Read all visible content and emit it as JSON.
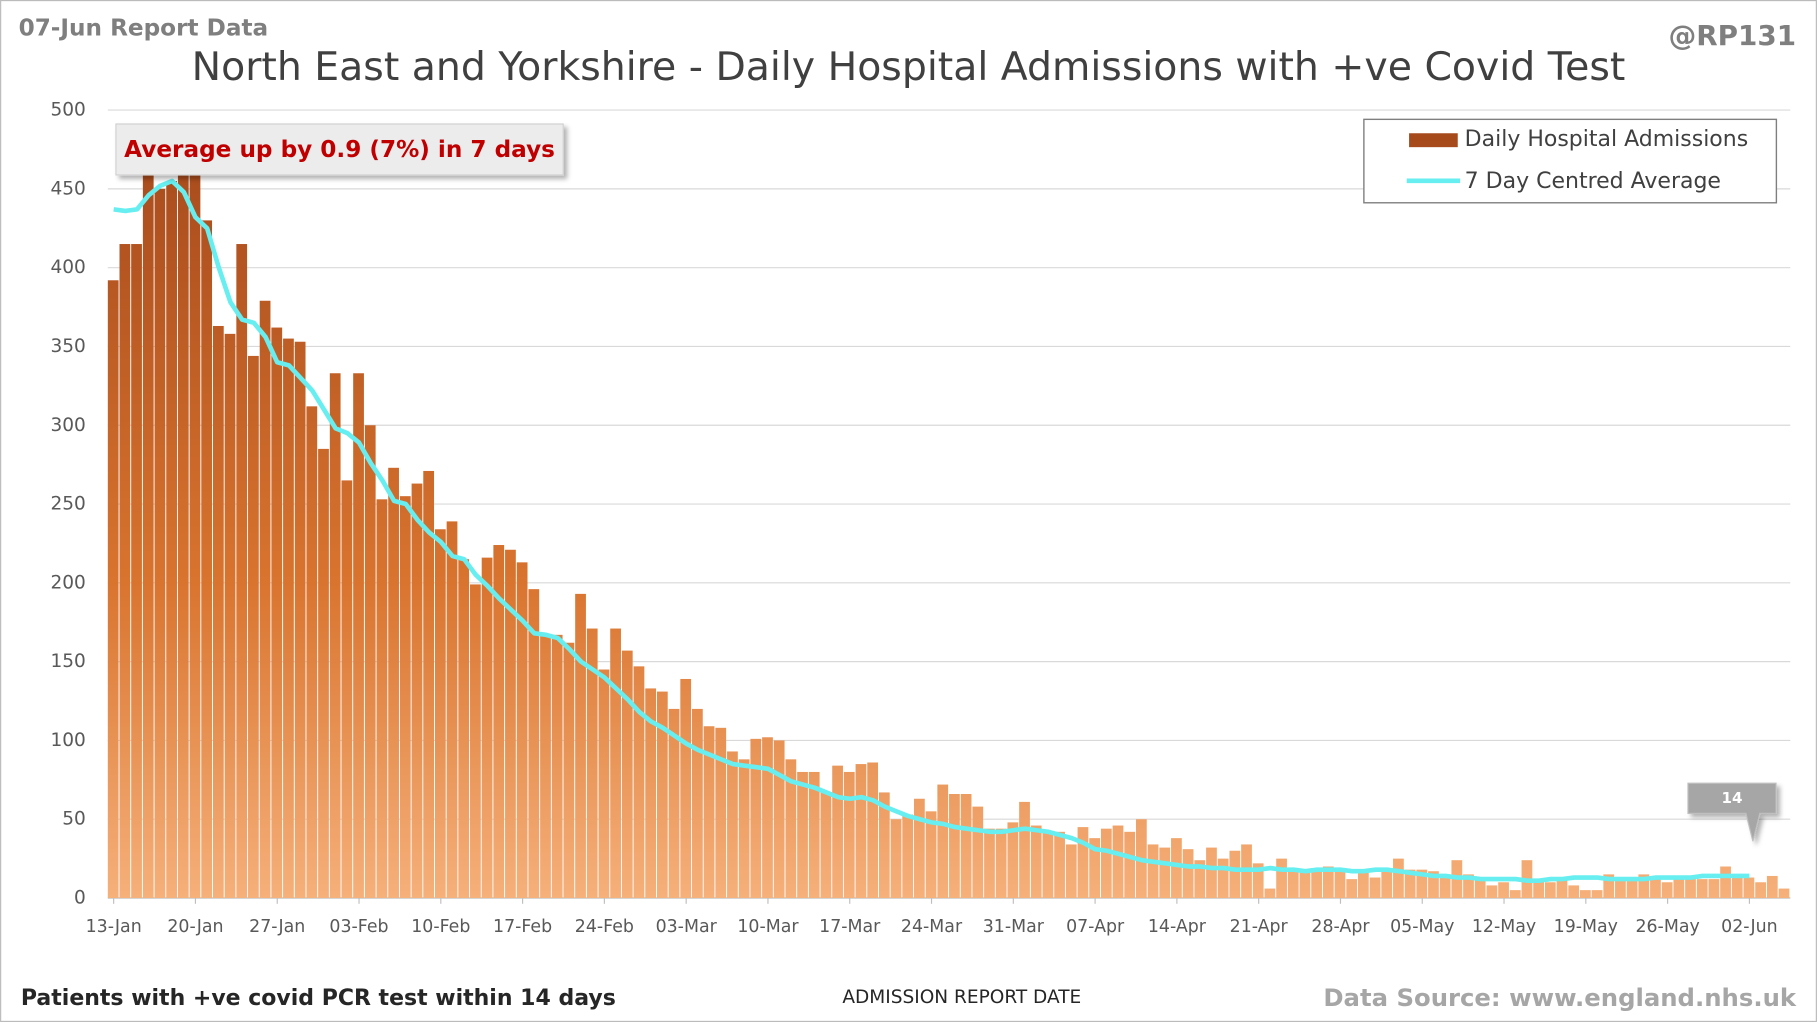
{
  "chart_data": {
    "type": "bar",
    "report_label": "07-Jun Report Data",
    "handle": "@RP131",
    "title": "North East and Yorkshire - Daily Hospital Admissions with +ve Covid Test",
    "annotation": "Average up by 0.9 (7%) in 7 days",
    "footnote": "Patients with +ve covid PCR test within 14 days",
    "x_label": "ADMISSION REPORT DATE",
    "source": "Data Source: www.england.nhs.uk",
    "categories": [
      "13-Jan",
      null,
      null,
      null,
      null,
      null,
      null,
      "20-Jan",
      null,
      null,
      null,
      null,
      null,
      null,
      "27-Jan",
      null,
      null,
      null,
      null,
      null,
      null,
      "03-Feb",
      null,
      null,
      null,
      null,
      null,
      null,
      "10-Feb",
      null,
      null,
      null,
      null,
      null,
      null,
      "17-Feb",
      null,
      null,
      null,
      null,
      null,
      null,
      "24-Feb",
      null,
      null,
      null,
      null,
      null,
      null,
      "03-Mar",
      null,
      null,
      null,
      null,
      null,
      null,
      "10-Mar",
      null,
      null,
      null,
      null,
      null,
      null,
      "17-Mar",
      null,
      null,
      null,
      null,
      null,
      null,
      "24-Mar",
      null,
      null,
      null,
      null,
      null,
      null,
      "31-Mar",
      null,
      null,
      null,
      null,
      null,
      null,
      "07-Apr",
      null,
      null,
      null,
      null,
      null,
      null,
      "14-Apr",
      null,
      null,
      null,
      null,
      null,
      null,
      "21-Apr",
      null,
      null,
      null,
      null,
      null,
      null,
      "28-Apr",
      null,
      null,
      null,
      null,
      null,
      null,
      "05-May",
      null,
      null,
      null,
      null,
      null,
      null,
      "12-May",
      null,
      null,
      null,
      null,
      null,
      null,
      "19-May",
      null,
      null,
      null,
      null,
      null,
      null,
      "26-May",
      null,
      null,
      null,
      null,
      null,
      null,
      "02-Jun",
      null,
      null,
      null
    ],
    "series": [
      {
        "name": "Daily Hospital Admissions",
        "color": "#c8632a",
        "values": [
          392,
          415,
          415,
          462,
          450,
          455,
          490,
          470,
          430,
          363,
          358,
          415,
          344,
          379,
          362,
          355,
          353,
          312,
          285,
          333,
          265,
          333,
          300,
          253,
          273,
          255,
          263,
          271,
          234,
          239,
          215,
          199,
          216,
          224,
          221,
          213,
          196,
          167,
          167,
          162,
          193,
          171,
          145,
          171,
          157,
          147,
          133,
          131,
          120,
          139,
          120,
          109,
          108,
          93,
          88,
          101,
          102,
          100,
          88,
          80,
          80,
          67,
          84,
          80,
          85,
          86,
          67,
          50,
          53,
          63,
          55,
          72,
          66,
          66,
          58,
          44,
          44,
          48,
          61,
          46,
          42,
          42,
          34,
          45,
          38,
          44,
          46,
          42,
          50,
          34,
          32,
          38,
          31,
          24,
          32,
          25,
          30,
          34,
          22,
          6,
          25,
          18,
          18,
          18,
          20,
          18,
          12,
          18,
          13,
          17,
          25,
          18,
          18,
          17,
          13,
          24,
          15,
          12,
          8,
          10,
          5,
          24,
          12,
          10,
          12,
          8,
          5,
          5,
          15,
          12,
          12,
          15,
          12,
          10,
          12,
          12,
          12,
          12,
          20,
          14,
          13,
          10,
          14,
          6
        ]
      },
      {
        "name": "7 Day Centred Average",
        "color": "#66eef0",
        "values": [
          437,
          436,
          437,
          446,
          452,
          455,
          448,
          432,
          425,
          400,
          378,
          367,
          365,
          356,
          340,
          338,
          330,
          322,
          310,
          298,
          295,
          289,
          276,
          265,
          252,
          250,
          240,
          232,
          226,
          217,
          215,
          205,
          198,
          190,
          183,
          176,
          168,
          167,
          165,
          158,
          150,
          145,
          140,
          133,
          126,
          118,
          112,
          108,
          103,
          98,
          94,
          91,
          88,
          85,
          84,
          83,
          82,
          78,
          74,
          72,
          70,
          67,
          64,
          63,
          64,
          62,
          58,
          55,
          52,
          50,
          48,
          47,
          45,
          44,
          43,
          42,
          42,
          43,
          44,
          43,
          42,
          40,
          38,
          35,
          31,
          30,
          28,
          26,
          24,
          23,
          22,
          21,
          20,
          20,
          19,
          19,
          18,
          18,
          18,
          19,
          18,
          18,
          17,
          18,
          18,
          18,
          17,
          17,
          18,
          18,
          17,
          16,
          15,
          14,
          14,
          13,
          13,
          12,
          12,
          12,
          12,
          11,
          11,
          12,
          12,
          13,
          13,
          13,
          12,
          12,
          12,
          12,
          13,
          13,
          13,
          13,
          14,
          14,
          14,
          14,
          14,
          null,
          null,
          null
        ]
      }
    ],
    "ylim": [
      0,
      500
    ],
    "yticks": [
      0,
      50,
      100,
      150,
      200,
      250,
      300,
      350,
      400,
      450,
      500
    ],
    "grid": true,
    "legend": "upper right"
  }
}
